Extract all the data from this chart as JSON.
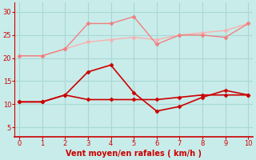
{
  "xlabel": "Vent moyen/en rafales ( km/h )",
  "bg_color": "#c8ecea",
  "grid_color": "#a8d8d5",
  "x": [
    0,
    1,
    2,
    3,
    4,
    5,
    6,
    7,
    8,
    9,
    10
  ],
  "line1": {
    "y": [
      20.5,
      20.5,
      22.0,
      27.5,
      27.5,
      29.0,
      23.0,
      25.0,
      25.0,
      24.5,
      27.5
    ],
    "color": "#f08080",
    "lw": 1.0
  },
  "line2": {
    "y": [
      20.5,
      20.5,
      22.0,
      23.5,
      24.0,
      24.5,
      24.0,
      25.0,
      25.5,
      26.0,
      27.5
    ],
    "color": "#f8b0b0",
    "lw": 1.0
  },
  "line3": {
    "y": [
      10.5,
      10.5,
      12.0,
      17.0,
      18.5,
      12.5,
      8.5,
      9.5,
      11.5,
      13.0,
      12.0
    ],
    "color": "#cc0000",
    "lw": 1.2
  },
  "line4": {
    "y": [
      10.5,
      10.5,
      12.0,
      11.0,
      11.0,
      11.0,
      11.0,
      11.5,
      12.0,
      12.0,
      12.0
    ],
    "color": "#cc0000",
    "lw": 1.2
  },
  "ylim": [
    3,
    32
  ],
  "xlim": [
    -0.2,
    10.2
  ],
  "yticks": [
    5,
    10,
    15,
    20,
    25,
    30
  ],
  "xticks": [
    0,
    1,
    2,
    3,
    4,
    5,
    6,
    7,
    8,
    9,
    10
  ],
  "marker": "D",
  "markersize": 2.5,
  "tick_color": "#cc0000",
  "label_fontsize": 6.0,
  "xlabel_fontsize": 7.0
}
